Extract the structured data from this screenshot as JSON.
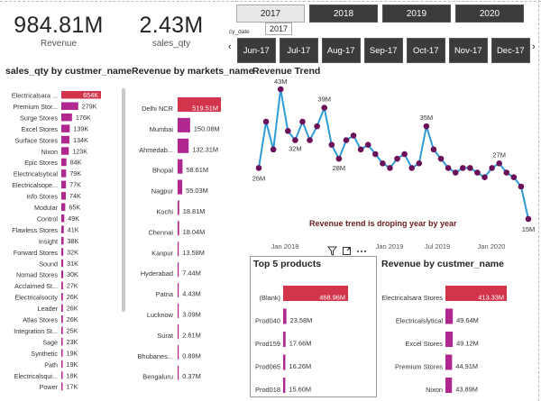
{
  "kpis": [
    {
      "value": "984.81M",
      "label": "Revenue"
    },
    {
      "value": "2.43M",
      "label": "sales_qty"
    }
  ],
  "year_slicer": {
    "years": [
      "2017",
      "2018",
      "2019",
      "2020"
    ],
    "selected": "2017",
    "tooltip": "2017"
  },
  "month_slicer": {
    "field_label": "cy_date",
    "months": [
      "Jun-17",
      "Jul-17",
      "Aug-17",
      "Sep-17",
      "Oct-17",
      "Nov-17",
      "Dec-17"
    ],
    "prev_arrow": "‹",
    "next_arrow": "›"
  },
  "colors": {
    "accent": "#d1344b",
    "magenta": "#b0278f",
    "line": "#2f9bd6",
    "marker": "#6b1159",
    "slicer_dark": "#3b3b3b"
  },
  "visual_header": {
    "filter_icon": "filter-icon",
    "focus_icon": "focus-mode-icon",
    "more_icon": "more-options-icon"
  },
  "chart_data": [
    {
      "id": "qty_by_customer",
      "type": "bar",
      "title": "sales_qty by custmer_name",
      "orientation": "horizontal",
      "categories": [
        "Electricalsara ...",
        "Premium Stor...",
        "Surge Stores",
        "Excel Stores",
        "Surface Stores",
        "Nixon",
        "Epic Stores",
        "Electricalsytical",
        "Electricalsope...",
        "Info Stores",
        "Modular",
        "Control",
        "Flawless Stores",
        "Insight",
        "Forward Stores",
        "Sound",
        "Nomad Stores",
        "Acclaimed St...",
        "Electricalsocity",
        "Leader",
        "Atlas Stores",
        "Integration St...",
        "Sage",
        "Synthetic",
        "Path",
        "Electricalsqui...",
        "Power"
      ],
      "values": [
        654,
        279,
        176,
        139,
        134,
        123,
        84,
        79,
        77,
        74,
        65,
        49,
        41,
        38,
        32,
        31,
        30,
        27,
        26,
        26,
        26,
        25,
        23,
        19,
        19,
        18,
        17
      ],
      "labels": [
        "654K",
        "279K",
        "176K",
        "139K",
        "134K",
        "123K",
        "84K",
        "79K",
        "77K",
        "74K",
        "65K",
        "49K",
        "41K",
        "38K",
        "32K",
        "31K",
        "30K",
        "27K",
        "26K",
        "26K",
        "26K",
        "25K",
        "23K",
        "19K",
        "19K",
        "18K",
        "17K"
      ],
      "highlight_index": 0,
      "unit": "K"
    },
    {
      "id": "revenue_by_market",
      "type": "bar",
      "title": "Revenue by markets_name",
      "orientation": "horizontal",
      "categories": [
        "Delhi NCR",
        "Mumbai",
        "Ahmedab...",
        "Bhopal",
        "Nagpur",
        "Kochi",
        "Chennai",
        "Kanpur",
        "Hyderabad",
        "Patna",
        "Lucknow",
        "Surat",
        "Bhubanes...",
        "Bengaluru"
      ],
      "values": [
        519.51,
        150.08,
        132.31,
        58.61,
        55.03,
        18.81,
        18.04,
        13.58,
        7.44,
        4.43,
        3.09,
        2.61,
        0.89,
        0.37
      ],
      "labels": [
        "519.51M",
        "150.08M",
        "132.31M",
        "58.61M",
        "55.03M",
        "18.81M",
        "18.04M",
        "13.58M",
        "7.44M",
        "4.43M",
        "3.09M",
        "2.61M",
        "0.89M",
        "0.37M"
      ],
      "highlight_index": 0,
      "unit": "M"
    },
    {
      "id": "revenue_trend",
      "type": "line",
      "title": "Revenue Trend",
      "x_ticks": [
        "Jan 2018",
        "Jan 2019",
        "Jul 2019",
        "Jan 2020"
      ],
      "y_range": [
        15,
        43
      ],
      "values": [
        26,
        36,
        30,
        43,
        34,
        32,
        36,
        32,
        35,
        39,
        31,
        28,
        32,
        33,
        30,
        31,
        29,
        27,
        26,
        28,
        29,
        26,
        27,
        35,
        30,
        28,
        26,
        25,
        26,
        26,
        25,
        24,
        26,
        27,
        25,
        24,
        22,
        15
      ],
      "point_labels": [
        {
          "index": 0,
          "text": "26M"
        },
        {
          "index": 3,
          "text": "43M"
        },
        {
          "index": 5,
          "text": "32M"
        },
        {
          "index": 9,
          "text": "39M"
        },
        {
          "index": 11,
          "text": "28M"
        },
        {
          "index": 23,
          "text": "35M"
        },
        {
          "index": 33,
          "text": "27M"
        },
        {
          "index": 37,
          "text": "15M"
        }
      ],
      "annotation": "Revenue trend is droping year by year"
    },
    {
      "id": "top5_products",
      "type": "bar",
      "title": "Top 5 products",
      "orientation": "horizontal",
      "categories": [
        "(Blank)",
        "Prod040",
        "Prod159",
        "Prod065",
        "Prod018"
      ],
      "values": [
        468.96,
        23.58,
        17.66,
        16.26,
        15.6
      ],
      "labels": [
        "468.96M",
        "23.58M",
        "17.66M",
        "16.26M",
        "15.60M"
      ],
      "highlight_index": 0,
      "unit": "M"
    },
    {
      "id": "revenue_by_customer",
      "type": "bar",
      "title": "Revenue by custmer_name",
      "orientation": "horizontal",
      "categories": [
        "Electricalsara Stores",
        "Electricalslytical",
        "Excel Stores",
        "Premium Stores",
        "Nixon"
      ],
      "values": [
        413.33,
        49.64,
        49.12,
        44.91,
        43.89
      ],
      "labels": [
        "413.33M",
        "49.64M",
        "49.12M",
        "44.91M",
        "43.89M"
      ],
      "highlight_index": 0,
      "unit": "M"
    }
  ]
}
